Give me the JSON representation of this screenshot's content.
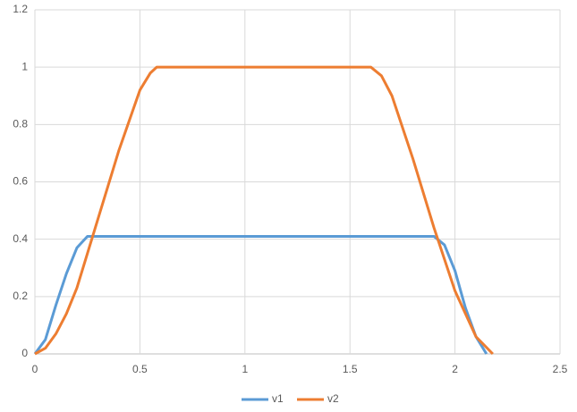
{
  "chart_data": {
    "type": "scatter-line",
    "series": [
      {
        "name": "v1",
        "color": "#5b9bd5",
        "x": [
          0,
          0.05,
          0.1,
          0.15,
          0.2,
          0.25,
          0.5,
          1,
          1.5,
          1.9,
          1.95,
          2.0,
          2.05,
          2.1,
          2.15
        ],
        "values": [
          0,
          0.05,
          0.17,
          0.28,
          0.37,
          0.41,
          0.41,
          0.41,
          0.41,
          0.41,
          0.38,
          0.29,
          0.16,
          0.06,
          0
        ]
      },
      {
        "name": "v2",
        "color": "#ed7d31",
        "x": [
          0,
          0.05,
          0.1,
          0.15,
          0.2,
          0.3,
          0.4,
          0.5,
          0.55,
          0.58,
          1,
          1.6,
          1.65,
          1.7,
          1.8,
          1.9,
          2.0,
          2.1,
          2.18
        ],
        "values": [
          0,
          0.02,
          0.07,
          0.14,
          0.23,
          0.47,
          0.71,
          0.92,
          0.98,
          1,
          1,
          1,
          0.97,
          0.9,
          0.68,
          0.44,
          0.22,
          0.06,
          0
        ]
      }
    ],
    "xlim": [
      0,
      2.5
    ],
    "xticks": [
      0,
      0.5,
      1,
      1.5,
      2,
      2.5
    ],
    "ylim": [
      0,
      1.2
    ],
    "yticks": [
      0,
      0.2,
      0.4,
      0.6,
      0.8,
      1,
      1.2
    ],
    "grid": true,
    "legend": "bottom"
  }
}
